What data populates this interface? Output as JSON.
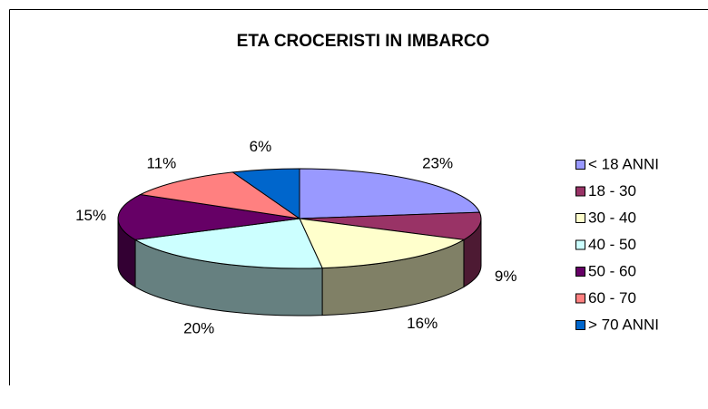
{
  "chart_data": {
    "type": "pie",
    "title": "ETA CROCERISTI IN IMBARCO",
    "categories": [
      "< 18 ANNI",
      "18 - 30",
      "30 - 40",
      "40 - 50",
      "50 - 60",
      "60 - 70",
      "> 70 ANNI"
    ],
    "values": [
      23,
      9,
      16,
      20,
      15,
      11,
      6
    ],
    "value_labels": [
      "23%",
      "9%",
      "16%",
      "20%",
      "15%",
      "11%",
      "6%"
    ],
    "colors": [
      "#9999ff",
      "#993366",
      "#ffffcc",
      "#ccffff",
      "#660066",
      "#ff8080",
      "#0066cc"
    ],
    "legend": "right"
  }
}
